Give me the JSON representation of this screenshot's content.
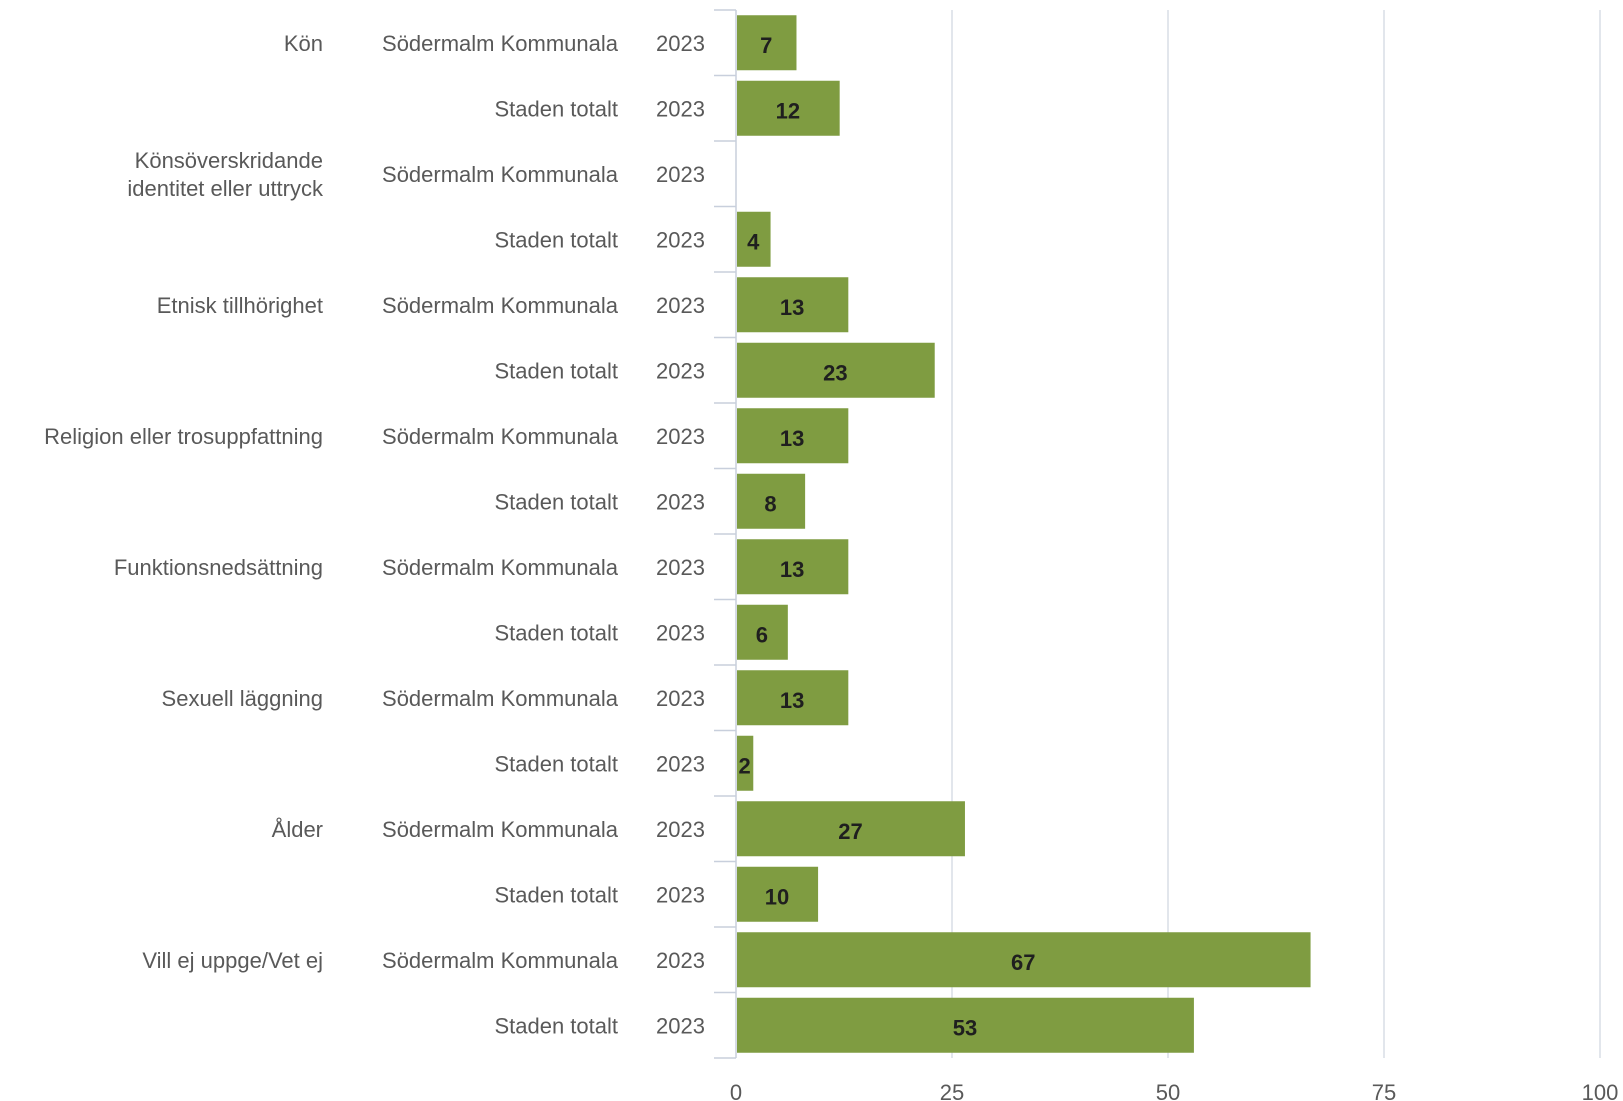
{
  "chart_data": {
    "type": "bar",
    "orientation": "horizontal",
    "title": "",
    "xlabel": "",
    "ylabel": "",
    "xlim": [
      0,
      100
    ],
    "xticks": [
      "0",
      "25",
      "50",
      "75",
      "100"
    ],
    "grid": true,
    "legend": "none",
    "bar_color": "#7f9c41",
    "categories": [
      {
        "label": [
          "Kön"
        ],
        "rows": [
          {
            "group": "Södermalm Kommunala",
            "year": "2023",
            "value": 7,
            "value_label": "7"
          },
          {
            "group": "Staden totalt",
            "year": "2023",
            "value": 12,
            "value_label": "12"
          }
        ]
      },
      {
        "label": [
          "Könsöverskridande",
          "identitet eller uttryck"
        ],
        "rows": [
          {
            "group": "Södermalm Kommunala",
            "year": "2023",
            "value": null,
            "value_label": ""
          },
          {
            "group": "Staden totalt",
            "year": "2023",
            "value": 4,
            "value_label": "4"
          }
        ]
      },
      {
        "label": [
          "Etnisk tillhörighet"
        ],
        "rows": [
          {
            "group": "Södermalm Kommunala",
            "year": "2023",
            "value": 13,
            "value_label": "13"
          },
          {
            "group": "Staden totalt",
            "year": "2023",
            "value": 23,
            "value_label": "23"
          }
        ]
      },
      {
        "label": [
          "Religion eller trosuppfattning"
        ],
        "rows": [
          {
            "group": "Södermalm Kommunala",
            "year": "2023",
            "value": 13,
            "value_label": "13"
          },
          {
            "group": "Staden totalt",
            "year": "2023",
            "value": 8,
            "value_label": "8"
          }
        ]
      },
      {
        "label": [
          "Funktionsnedsättning"
        ],
        "rows": [
          {
            "group": "Södermalm Kommunala",
            "year": "2023",
            "value": 13,
            "value_label": "13"
          },
          {
            "group": "Staden totalt",
            "year": "2023",
            "value": 6,
            "value_label": "6"
          }
        ]
      },
      {
        "label": [
          "Sexuell läggning"
        ],
        "rows": [
          {
            "group": "Södermalm Kommunala",
            "year": "2023",
            "value": 13,
            "value_label": "13"
          },
          {
            "group": "Staden totalt",
            "year": "2023",
            "value": 2,
            "value_label": "2"
          }
        ]
      },
      {
        "label": [
          "Ålder"
        ],
        "rows": [
          {
            "group": "Södermalm Kommunala",
            "year": "2023",
            "value": 26.5,
            "value_label": "27"
          },
          {
            "group": "Staden totalt",
            "year": "2023",
            "value": 9.5,
            "value_label": "10"
          }
        ]
      },
      {
        "label": [
          "Vill ej uppge/Vet ej"
        ],
        "rows": [
          {
            "group": "Södermalm Kommunala",
            "year": "2023",
            "value": 66.5,
            "value_label": "67"
          },
          {
            "group": "Staden totalt",
            "year": "2023",
            "value": 53,
            "value_label": "53"
          }
        ]
      }
    ]
  }
}
